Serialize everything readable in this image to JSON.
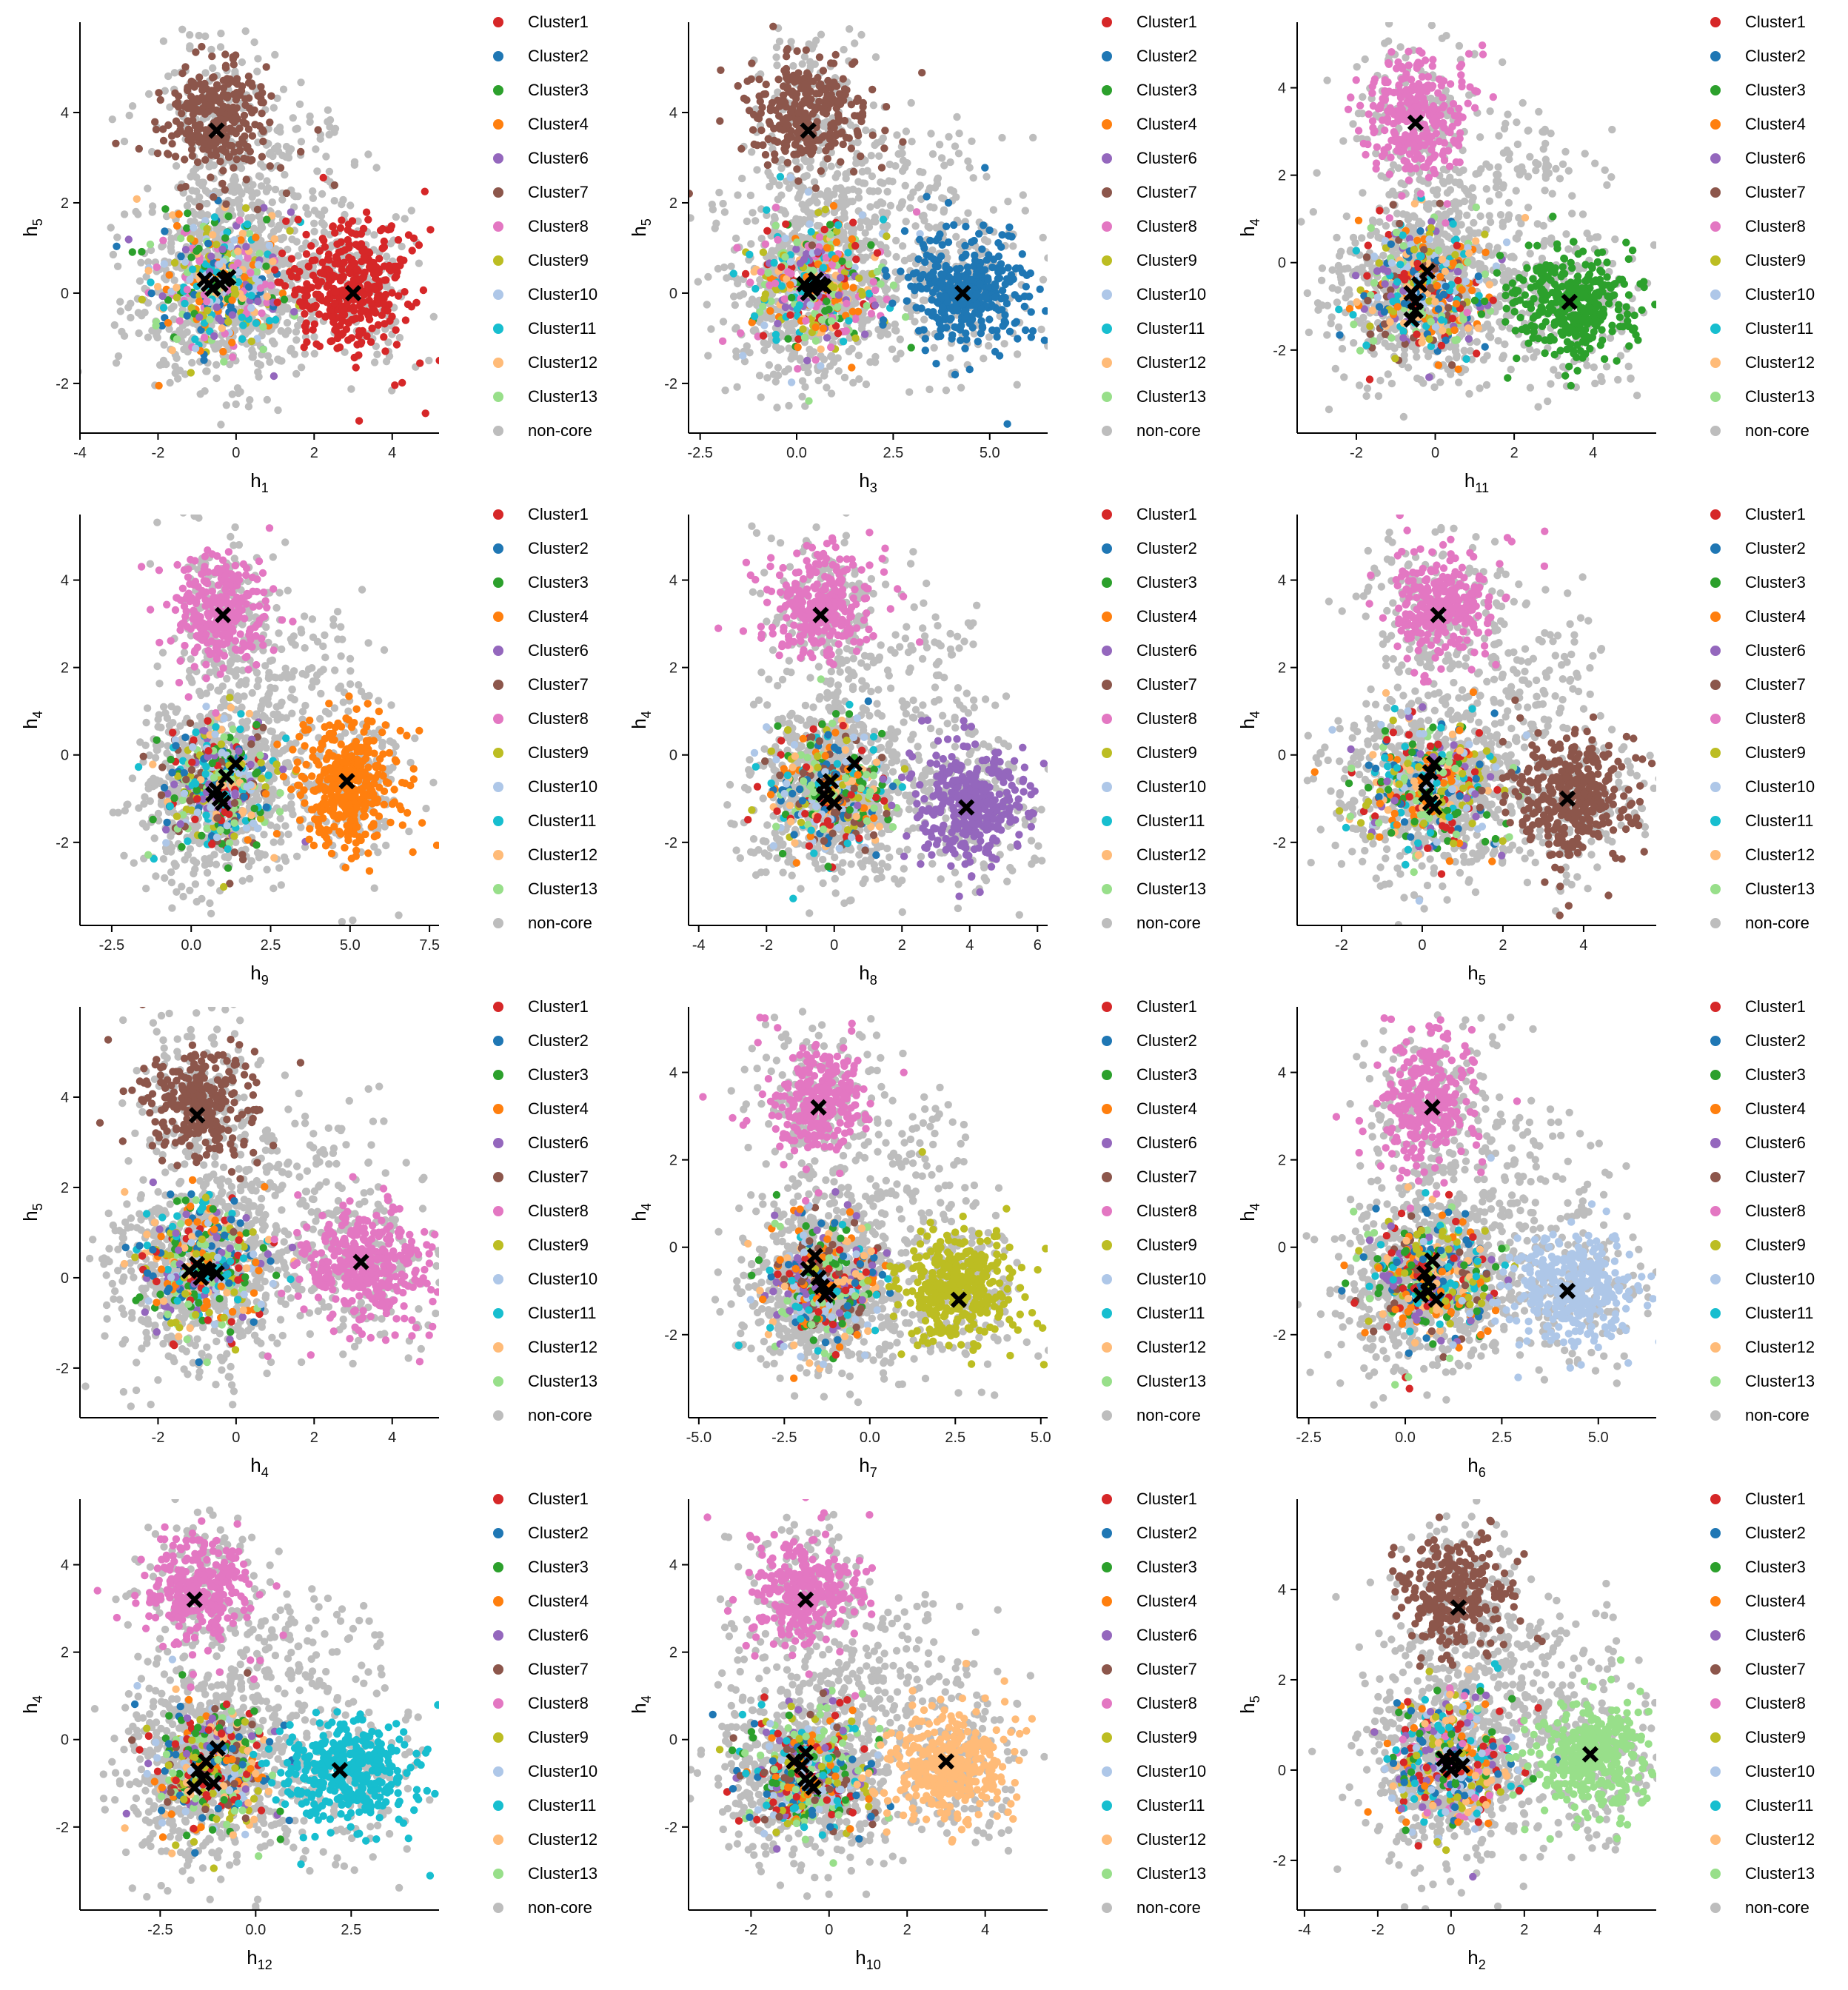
{
  "colors": {
    "Cluster1": "#d62728",
    "Cluster2": "#1f77b4",
    "Cluster3": "#2ca02c",
    "Cluster4": "#ff7f0e",
    "Cluster6": "#9467bd",
    "Cluster7": "#8c564b",
    "Cluster8": "#e377c2",
    "Cluster9": "#bcbd22",
    "Cluster10": "#aec7e8",
    "Cluster11": "#17becf",
    "Cluster12": "#ffbb78",
    "Cluster13": "#98df8a",
    "non-core": "#bdbdbd",
    "centroid": "#000000"
  },
  "legend_entries": [
    "Cluster1",
    "Cluster2",
    "Cluster3",
    "Cluster4",
    "Cluster6",
    "Cluster7",
    "Cluster8",
    "Cluster9",
    "Cluster10",
    "Cluster11",
    "Cluster12",
    "Cluster13",
    "non-core"
  ],
  "chart_data": [
    {
      "type": "scatter",
      "x_sub": "1",
      "y_sub": "5",
      "xlim": [
        -4,
        5.2
      ],
      "ylim": [
        -3.1,
        6
      ],
      "xticks": [
        -4,
        -2,
        0,
        2,
        4
      ],
      "yticks": [
        -2,
        0,
        2,
        4
      ],
      "clusters": [
        {
          "name": "Cluster7",
          "cx": -0.5,
          "cy": 3.8,
          "sx": 0.7,
          "sy": 0.6,
          "n": 260
        },
        {
          "name": "Cluster1",
          "cx": 3.0,
          "cy": 0.1,
          "sx": 0.8,
          "sy": 0.7,
          "n": 340
        }
      ],
      "core_center": [
        -0.3,
        0.2
      ],
      "centroids": [
        [
          -0.5,
          3.6
        ],
        [
          3.0,
          0.0
        ],
        [
          -0.8,
          0.3
        ],
        [
          -0.3,
          0.3
        ],
        [
          -0.6,
          0.1
        ],
        [
          -0.4,
          0.2
        ],
        [
          -0.2,
          0.35
        ],
        [
          -0.7,
          0.2
        ]
      ]
    },
    {
      "type": "scatter",
      "x_sub": "3",
      "y_sub": "5",
      "xlim": [
        -2.8,
        6.5
      ],
      "ylim": [
        -3.1,
        6
      ],
      "xticks": [
        -2.5,
        0,
        2.5,
        5
      ],
      "xticklabels": [
        "-2.5",
        "0.0",
        "2.5",
        "5.0"
      ],
      "yticks": [
        -2,
        0,
        2,
        4
      ],
      "clusters": [
        {
          "name": "Cluster7",
          "cx": 0.3,
          "cy": 3.9,
          "sx": 0.7,
          "sy": 0.6,
          "n": 260
        },
        {
          "name": "Cluster2",
          "cx": 4.4,
          "cy": 0.1,
          "sx": 0.8,
          "sy": 0.6,
          "n": 340
        }
      ],
      "core_center": [
        0.5,
        0.2
      ],
      "centroids": [
        [
          0.3,
          3.6
        ],
        [
          4.3,
          0.0
        ],
        [
          0.2,
          0.2
        ],
        [
          0.4,
          0.1
        ],
        [
          0.6,
          0.2
        ],
        [
          0.5,
          0.3
        ],
        [
          0.3,
          0.0
        ],
        [
          0.7,
          0.15
        ]
      ]
    },
    {
      "type": "scatter",
      "x_sub": "11",
      "y_sub": "4",
      "xlim": [
        -3.5,
        5.6
      ],
      "ylim": [
        -3.9,
        5.5
      ],
      "xticks": [
        -2,
        0,
        2,
        4
      ],
      "yticks": [
        -2,
        0,
        2,
        4
      ],
      "clusters": [
        {
          "name": "Cluster8",
          "cx": -0.5,
          "cy": 3.3,
          "sx": 0.6,
          "sy": 0.7,
          "n": 260
        },
        {
          "name": "Cluster3",
          "cx": 3.5,
          "cy": -1.0,
          "sx": 0.8,
          "sy": 0.6,
          "n": 340
        }
      ],
      "core_center": [
        -0.3,
        -0.6
      ],
      "centroids": [
        [
          -0.5,
          3.2
        ],
        [
          3.4,
          -0.9
        ],
        [
          -0.6,
          -0.7
        ],
        [
          -0.5,
          -1.1
        ],
        [
          -0.4,
          -0.5
        ],
        [
          -0.2,
          -0.2
        ],
        [
          -0.6,
          -1.3
        ],
        [
          -0.5,
          -0.9
        ]
      ]
    },
    {
      "type": "scatter",
      "x_sub": "9",
      "y_sub": "4",
      "xlim": [
        -3.5,
        7.8
      ],
      "ylim": [
        -3.9,
        5.5
      ],
      "xticks": [
        -2.5,
        0,
        2.5,
        5,
        7.5
      ],
      "xticklabels": [
        "-2.5",
        "0.0",
        "2.5",
        "5.0",
        "7.5"
      ],
      "yticks": [
        -2,
        0,
        2,
        4
      ],
      "clusters": [
        {
          "name": "Cluster8",
          "cx": 1.0,
          "cy": 3.3,
          "sx": 0.7,
          "sy": 0.6,
          "n": 260
        },
        {
          "name": "Cluster4",
          "cx": 5.0,
          "cy": -0.7,
          "sx": 0.8,
          "sy": 0.7,
          "n": 340
        }
      ],
      "core_center": [
        0.9,
        -0.7
      ],
      "centroids": [
        [
          1.0,
          3.2
        ],
        [
          4.9,
          -0.6
        ],
        [
          0.8,
          -0.8
        ],
        [
          1.0,
          -1.1
        ],
        [
          1.4,
          -0.2
        ],
        [
          1.1,
          -0.5
        ],
        [
          0.9,
          -1.0
        ],
        [
          0.7,
          -0.9
        ]
      ]
    },
    {
      "type": "scatter",
      "x_sub": "8",
      "y_sub": "4",
      "xlim": [
        -4.3,
        6.3
      ],
      "ylim": [
        -3.9,
        5.5
      ],
      "xticks": [
        -4,
        -2,
        0,
        2,
        4,
        6
      ],
      "yticks": [
        -2,
        0,
        2,
        4
      ],
      "clusters": [
        {
          "name": "Cluster8",
          "cx": -0.4,
          "cy": 3.4,
          "sx": 0.7,
          "sy": 0.6,
          "n": 260
        },
        {
          "name": "Cluster6",
          "cx": 4.0,
          "cy": -1.2,
          "sx": 0.8,
          "sy": 0.6,
          "n": 340
        }
      ],
      "core_center": [
        -0.1,
        -0.8
      ],
      "centroids": [
        [
          -0.4,
          3.2
        ],
        [
          3.9,
          -1.2
        ],
        [
          -0.3,
          -0.7
        ],
        [
          -0.2,
          -1.0
        ],
        [
          0.6,
          -0.2
        ],
        [
          -0.1,
          -0.6
        ],
        [
          0.0,
          -1.1
        ],
        [
          -0.3,
          -0.9
        ]
      ]
    },
    {
      "type": "scatter",
      "x_sub": "5",
      "y_sub": "4",
      "xlim": [
        -3.1,
        5.8
      ],
      "ylim": [
        -3.9,
        5.5
      ],
      "xticks": [
        -2,
        0,
        2,
        4
      ],
      "yticks": [
        -2,
        0,
        2,
        4
      ],
      "clusters": [
        {
          "name": "Cluster8",
          "cx": 0.4,
          "cy": 3.4,
          "sx": 0.6,
          "sy": 0.6,
          "n": 260
        },
        {
          "name": "Cluster7",
          "cx": 3.7,
          "cy": -1.0,
          "sx": 0.7,
          "sy": 0.7,
          "n": 340
        }
      ],
      "core_center": [
        0.2,
        -0.7
      ],
      "centroids": [
        [
          0.4,
          3.2
        ],
        [
          3.6,
          -1.0
        ],
        [
          0.1,
          -0.6
        ],
        [
          0.2,
          -1.1
        ],
        [
          0.3,
          -0.2
        ],
        [
          0.1,
          -0.9
        ],
        [
          0.2,
          -0.4
        ],
        [
          0.3,
          -1.2
        ]
      ]
    },
    {
      "type": "scatter",
      "x_sub": "4",
      "y_sub": "5",
      "xlim": [
        -4,
        5.2
      ],
      "ylim": [
        -3.1,
        6
      ],
      "xticks": [
        -2,
        0,
        2,
        4
      ],
      "yticks": [
        -2,
        0,
        2,
        4
      ],
      "clusters": [
        {
          "name": "Cluster7",
          "cx": -1.0,
          "cy": 3.9,
          "sx": 0.7,
          "sy": 0.6,
          "n": 260
        },
        {
          "name": "Cluster8",
          "cx": 3.3,
          "cy": 0.3,
          "sx": 0.8,
          "sy": 0.6,
          "n": 340
        }
      ],
      "core_center": [
        -0.9,
        0.2
      ],
      "centroids": [
        [
          -1.0,
          3.6
        ],
        [
          3.2,
          0.35
        ],
        [
          -1.2,
          0.15
        ],
        [
          -0.8,
          0.2
        ],
        [
          -0.5,
          0.1
        ],
        [
          -0.9,
          0.0
        ],
        [
          -1.0,
          0.3
        ],
        [
          -0.7,
          0.15
        ]
      ]
    },
    {
      "type": "scatter",
      "x_sub": "7",
      "y_sub": "4",
      "xlim": [
        -5.3,
        5.2
      ],
      "ylim": [
        -3.9,
        5.5
      ],
      "xticks": [
        -5,
        -2.5,
        0,
        2.5,
        5
      ],
      "xticklabels": [
        "-5.0",
        "-2.5",
        "0.0",
        "2.5",
        "5.0"
      ],
      "yticks": [
        -2,
        0,
        2,
        4
      ],
      "clusters": [
        {
          "name": "Cluster8",
          "cx": -1.5,
          "cy": 3.4,
          "sx": 0.7,
          "sy": 0.6,
          "n": 260
        },
        {
          "name": "Cluster9",
          "cx": 2.6,
          "cy": -1.0,
          "sx": 0.8,
          "sy": 0.6,
          "n": 340
        }
      ],
      "core_center": [
        -1.4,
        -0.8
      ],
      "centroids": [
        [
          -1.5,
          3.2
        ],
        [
          2.6,
          -1.2
        ],
        [
          -1.8,
          -0.5
        ],
        [
          -1.5,
          -0.7
        ],
        [
          -1.3,
          -1.1
        ],
        [
          -1.6,
          -0.2
        ],
        [
          -1.4,
          -0.9
        ],
        [
          -1.2,
          -1.0
        ]
      ]
    },
    {
      "type": "scatter",
      "x_sub": "6",
      "y_sub": "4",
      "xlim": [
        -2.8,
        6.5
      ],
      "ylim": [
        -3.9,
        5.5
      ],
      "xticks": [
        -2.5,
        0,
        2.5,
        5
      ],
      "xticklabels": [
        "-2.5",
        "0.0",
        "2.5",
        "5.0"
      ],
      "yticks": [
        -2,
        0,
        2,
        4
      ],
      "clusters": [
        {
          "name": "Cluster8",
          "cx": 0.6,
          "cy": 3.3,
          "sx": 0.6,
          "sy": 0.7,
          "n": 260
        },
        {
          "name": "Cluster10",
          "cx": 4.3,
          "cy": -0.9,
          "sx": 0.8,
          "sy": 0.6,
          "n": 340
        }
      ],
      "core_center": [
        0.6,
        -0.7
      ],
      "centroids": [
        [
          0.7,
          3.2
        ],
        [
          4.2,
          -1.0
        ],
        [
          0.5,
          -0.6
        ],
        [
          0.6,
          -1.0
        ],
        [
          0.7,
          -0.3
        ],
        [
          0.4,
          -1.1
        ],
        [
          0.8,
          -1.2
        ],
        [
          0.6,
          -0.8
        ]
      ]
    },
    {
      "type": "scatter",
      "x_sub": "12",
      "y_sub": "4",
      "xlim": [
        -4.6,
        4.8
      ],
      "ylim": [
        -3.9,
        5.5
      ],
      "xticks": [
        -2.5,
        0,
        2.5
      ],
      "xticklabels": [
        "-2.5",
        "0.0",
        "2.5"
      ],
      "yticks": [
        -2,
        0,
        2,
        4
      ],
      "clusters": [
        {
          "name": "Cluster8",
          "cx": -1.5,
          "cy": 3.4,
          "sx": 0.7,
          "sy": 0.6,
          "n": 260
        },
        {
          "name": "Cluster11",
          "cx": 2.4,
          "cy": -0.8,
          "sx": 0.8,
          "sy": 0.6,
          "n": 340
        }
      ],
      "core_center": [
        -1.2,
        -0.7
      ],
      "centroids": [
        [
          -1.6,
          3.2
        ],
        [
          2.2,
          -0.7
        ],
        [
          -1.3,
          -0.5
        ],
        [
          -1.0,
          -0.2
        ],
        [
          -1.4,
          -0.9
        ],
        [
          -1.6,
          -1.1
        ],
        [
          -1.1,
          -1.0
        ],
        [
          -1.5,
          -0.7
        ]
      ]
    },
    {
      "type": "scatter",
      "x_sub": "10",
      "y_sub": "4",
      "xlim": [
        -3.6,
        5.6
      ],
      "ylim": [
        -3.9,
        5.5
      ],
      "xticks": [
        -2,
        0,
        2,
        4
      ],
      "yticks": [
        -2,
        0,
        2,
        4
      ],
      "clusters": [
        {
          "name": "Cluster8",
          "cx": -0.6,
          "cy": 3.4,
          "sx": 0.7,
          "sy": 0.6,
          "n": 260
        },
        {
          "name": "Cluster12",
          "cx": 3.1,
          "cy": -0.6,
          "sx": 0.8,
          "sy": 0.6,
          "n": 340
        }
      ],
      "core_center": [
        -0.5,
        -0.7
      ],
      "centroids": [
        [
          -0.6,
          3.2
        ],
        [
          3.0,
          -0.5
        ],
        [
          -0.7,
          -0.6
        ],
        [
          -0.5,
          -1.0
        ],
        [
          -0.6,
          -0.3
        ],
        [
          -0.9,
          -0.5
        ],
        [
          -0.4,
          -1.1
        ],
        [
          -0.6,
          -0.9
        ]
      ]
    },
    {
      "type": "scatter",
      "x_sub": "2",
      "y_sub": "5",
      "xlim": [
        -4.2,
        5.6
      ],
      "ylim": [
        -3.1,
        6
      ],
      "xticks": [
        -4,
        -2,
        0,
        2,
        4
      ],
      "yticks": [
        -2,
        0,
        2,
        4
      ],
      "clusters": [
        {
          "name": "Cluster7",
          "cx": 0.1,
          "cy": 3.9,
          "sx": 0.7,
          "sy": 0.6,
          "n": 260
        },
        {
          "name": "Cluster13",
          "cx": 3.9,
          "cy": 0.3,
          "sx": 0.8,
          "sy": 0.6,
          "n": 340
        }
      ],
      "core_center": [
        0.0,
        0.2
      ],
      "centroids": [
        [
          0.2,
          3.6
        ],
        [
          3.8,
          0.35
        ],
        [
          0.0,
          0.2
        ],
        [
          -0.1,
          0.1
        ],
        [
          0.1,
          0.3
        ],
        [
          0.3,
          0.1
        ],
        [
          0.0,
          0.0
        ],
        [
          -0.2,
          0.25
        ]
      ]
    }
  ]
}
